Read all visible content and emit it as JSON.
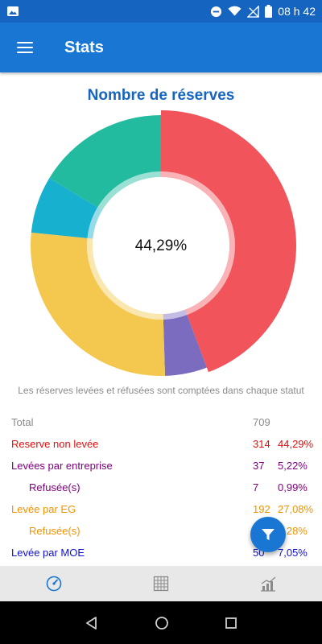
{
  "status_bar": {
    "time": "08 h 42"
  },
  "app_bar": {
    "title": "Stats"
  },
  "colors": {
    "primary": "#1976d2",
    "status_bar": "#1565c0",
    "non_levee": "#f2545b",
    "entreprise": "#7b6cc0",
    "eg": "#f4c84e",
    "moe": "#18b0cf",
    "other": "#22bba0"
  },
  "chart": {
    "center_label": "44,29%"
  },
  "chart_data": {
    "type": "pie",
    "title": "Nombre de réserves",
    "center_label": "44,29%",
    "slices": [
      {
        "label": "Reserve non levée",
        "value": 44.29,
        "color": "#f2545b"
      },
      {
        "label": "Levées par entreprise",
        "value": 5.22,
        "color": "#7b6cc0"
      },
      {
        "label": "Levée par EG",
        "value": 27.08,
        "color": "#f4c84e"
      },
      {
        "label": "Levée par MOE",
        "value": 7.05,
        "color": "#18b0cf"
      },
      {
        "label": "",
        "value": 16.36,
        "color": "#22bba0"
      }
    ]
  },
  "note": "Les réserves levées et réfusées sont comptées dans chaque statut",
  "stats": {
    "rows": [
      {
        "label": "Total",
        "count": "709",
        "pct": "",
        "color": "#8a8a8a"
      },
      {
        "label": "Reserve non levée",
        "count": "314",
        "pct": "44,29%",
        "color": "#e01010"
      },
      {
        "label": "Levées par entreprise",
        "count": "37",
        "pct": "5,22%",
        "color": "#800080"
      },
      {
        "label": "Refusée(s)",
        "count": "7",
        "pct": "0,99%",
        "color": "#800080",
        "indent": true
      },
      {
        "label": "Levée par EG",
        "count": "192",
        "pct": "27,08%",
        "color": "#f39200"
      },
      {
        "label": "Refusée(s)",
        "count": "",
        "pct": "?,28%",
        "color": "#f39200",
        "indent": true
      },
      {
        "label": "Levée par MOE",
        "count": "50",
        "pct": "7,05%",
        "color": "#1010d0"
      }
    ]
  },
  "icons": {
    "menu": "menu-icon",
    "filter": "filter-icon",
    "tab_dashboard": "gauge-icon",
    "tab_grid": "grid-icon",
    "tab_chart": "bar-chart-icon"
  }
}
